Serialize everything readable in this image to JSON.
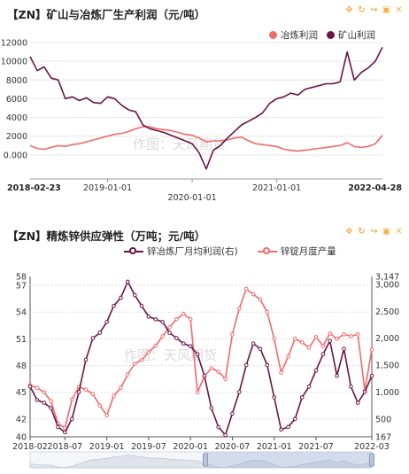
{
  "panel1": {
    "title": "【ZN】矿山与冶炼厂生产利润（元/吨）",
    "legend": [
      {
        "name": "冶炼利润",
        "color": "#f06a6a"
      },
      {
        "name": "矿山利润",
        "color": "#6a1446"
      }
    ],
    "watermark": "作图：天风期货",
    "x_start_label": "2018-02-23",
    "x_end_label": "2022-04-28",
    "x_ticks": [
      "2019-01-01",
      "2020-01-01",
      "2021-01-01"
    ]
  },
  "panel2": {
    "title": "【ZN】精炼锌供应弹性（万吨；元/吨）",
    "legend": [
      {
        "name": "锌冶炼厂月均利润(右)",
        "color": "#6a1446"
      },
      {
        "name": "锌锭月度产量",
        "color": "#f06a6a"
      }
    ],
    "watermark": "作图：天风期货",
    "x_ticks": [
      "2018-02",
      "2018-07",
      "2019-01",
      "2019-07",
      "2020-01",
      "2020-07",
      "2021-01",
      "2021-07",
      "2022-03"
    ]
  },
  "toolbar": [
    "move-icon",
    "refresh-icon",
    "share-icon",
    "save-icon",
    "close-icon"
  ],
  "chart_data": [
    {
      "type": "line",
      "title": "【ZN】矿山与冶炼厂生产利润（元/吨）",
      "ylim": [
        -2000,
        12000
      ],
      "y_ticks": [
        "12000",
        "10000",
        "8000",
        "6000",
        "4000",
        "2000",
        "0.000"
      ],
      "x_range": [
        "2018-02-23",
        "2022-04-28"
      ],
      "series": [
        {
          "name": "矿山利润",
          "color": "#6a1446",
          "x": [
            "2018-02",
            "2018-03",
            "2018-04",
            "2018-05",
            "2018-06",
            "2018-07",
            "2018-08",
            "2018-09",
            "2018-10",
            "2018-11",
            "2018-12",
            "2019-01",
            "2019-02",
            "2019-03",
            "2019-04",
            "2019-05",
            "2019-06",
            "2019-07",
            "2019-08",
            "2019-09",
            "2019-10",
            "2019-11",
            "2019-12",
            "2020-01",
            "2020-02",
            "2020-03",
            "2020-04",
            "2020-05",
            "2020-06",
            "2020-07",
            "2020-08",
            "2020-09",
            "2020-10",
            "2020-11",
            "2020-12",
            "2021-01",
            "2021-02",
            "2021-03",
            "2021-04",
            "2021-05",
            "2021-06",
            "2021-07",
            "2021-08",
            "2021-09",
            "2021-10",
            "2021-11",
            "2021-12",
            "2022-01",
            "2022-02",
            "2022-03",
            "2022-04"
          ],
          "values": [
            10500,
            9000,
            9400,
            8200,
            8000,
            6000,
            6200,
            5800,
            6100,
            5600,
            5500,
            6200,
            6000,
            5300,
            4800,
            4600,
            3200,
            2800,
            2600,
            2400,
            2100,
            1800,
            1500,
            1200,
            200,
            -1500,
            500,
            1000,
            1800,
            2500,
            3200,
            3600,
            4000,
            4500,
            5500,
            6000,
            6200,
            6600,
            6400,
            7000,
            7200,
            7400,
            7600,
            7600,
            7800,
            11000,
            8000,
            8800,
            9300,
            10000,
            11500
          ]
        },
        {
          "name": "冶炼利润",
          "color": "#f06a6a",
          "x": [
            "2018-02",
            "2018-03",
            "2018-04",
            "2018-05",
            "2018-06",
            "2018-07",
            "2018-08",
            "2018-09",
            "2018-10",
            "2018-11",
            "2018-12",
            "2019-01",
            "2019-02",
            "2019-03",
            "2019-04",
            "2019-05",
            "2019-06",
            "2019-07",
            "2019-08",
            "2019-09",
            "2019-10",
            "2019-11",
            "2019-12",
            "2020-01",
            "2020-02",
            "2020-03",
            "2020-04",
            "2020-05",
            "2020-06",
            "2020-07",
            "2020-08",
            "2020-09",
            "2020-10",
            "2020-11",
            "2020-12",
            "2021-01",
            "2021-02",
            "2021-03",
            "2021-04",
            "2021-05",
            "2021-06",
            "2021-07",
            "2021-08",
            "2021-09",
            "2021-10",
            "2021-11",
            "2021-12",
            "2022-01",
            "2022-02",
            "2022-03",
            "2022-04"
          ],
          "values": [
            1000,
            700,
            600,
            800,
            1000,
            900,
            1100,
            1200,
            1400,
            1600,
            1800,
            2000,
            2200,
            2300,
            2500,
            2800,
            3000,
            3000,
            2800,
            2700,
            2600,
            2400,
            2200,
            2100,
            1800,
            1400,
            1500,
            1500,
            1600,
            1800,
            1900,
            1500,
            1200,
            1100,
            1000,
            900,
            600,
            500,
            400,
            500,
            600,
            700,
            800,
            900,
            1000,
            1300,
            900,
            800,
            900,
            1200,
            2100
          ]
        }
      ]
    },
    {
      "type": "line",
      "title": "【ZN】精炼锌供应弹性（万吨；元/吨）",
      "x": [
        "2018-02",
        "2018-03",
        "2018-04",
        "2018-05",
        "2018-06",
        "2018-07",
        "2018-08",
        "2018-09",
        "2018-10",
        "2018-11",
        "2018-12",
        "2019-01",
        "2019-02",
        "2019-03",
        "2019-04",
        "2019-05",
        "2019-06",
        "2019-07",
        "2019-08",
        "2019-09",
        "2019-10",
        "2019-11",
        "2019-12",
        "2020-01",
        "2020-02",
        "2020-03",
        "2020-04",
        "2020-05",
        "2020-06",
        "2020-07",
        "2020-08",
        "2020-09",
        "2020-10",
        "2020-11",
        "2020-12",
        "2021-01",
        "2021-02",
        "2021-03",
        "2021-04",
        "2021-05",
        "2021-06",
        "2021-07",
        "2021-08",
        "2021-09",
        "2021-10",
        "2021-11",
        "2021-12",
        "2022-01",
        "2022-02",
        "2022-03"
      ],
      "ylim_left": [
        40,
        58
      ],
      "ylim_right": [
        167,
        3147
      ],
      "y_ticks_left": [
        40,
        42,
        45,
        48,
        51,
        54,
        57,
        58
      ],
      "y_ticks_right": [
        "167",
        "500",
        "1,000",
        "1,500",
        "2,000",
        "2,500",
        "3,000",
        "3,147"
      ],
      "series": [
        {
          "name": "锌锭月度产量",
          "axis": "left",
          "color": "#f06a6a",
          "values": [
            45.8,
            45.5,
            45.0,
            44.0,
            41.5,
            41.0,
            44.2,
            45.6,
            45.3,
            44.8,
            43.5,
            42.4,
            44.6,
            45.5,
            47.0,
            48.2,
            48.6,
            49.5,
            50.2,
            51.3,
            52.3,
            53.2,
            53.8,
            53.2,
            45.0,
            46.8,
            47.7,
            47.3,
            46.5,
            51.5,
            54.4,
            56.6,
            56.0,
            55.4,
            54.0,
            51.0,
            47.2,
            49.0,
            51.0,
            50.6,
            50.0,
            51.2,
            50.2,
            51.6,
            51.0,
            51.5,
            51.3,
            51.5,
            45.2,
            49.8
          ]
        },
        {
          "name": "锌冶炼厂月均利润(右)",
          "axis": "right",
          "color": "#6a1446",
          "values": [
            1100,
            850,
            800,
            700,
            350,
            250,
            500,
            1000,
            1600,
            2000,
            2100,
            2300,
            2600,
            2750,
            3050,
            2800,
            2600,
            2400,
            2350,
            2300,
            2100,
            2000,
            1900,
            1850,
            1700,
            1300,
            700,
            350,
            200,
            600,
            1000,
            1500,
            1900,
            1800,
            1500,
            900,
            300,
            350,
            500,
            900,
            1100,
            1400,
            1700,
            1950,
            1300,
            1800,
            1100,
            800,
            1000,
            1300
          ]
        }
      ]
    }
  ]
}
